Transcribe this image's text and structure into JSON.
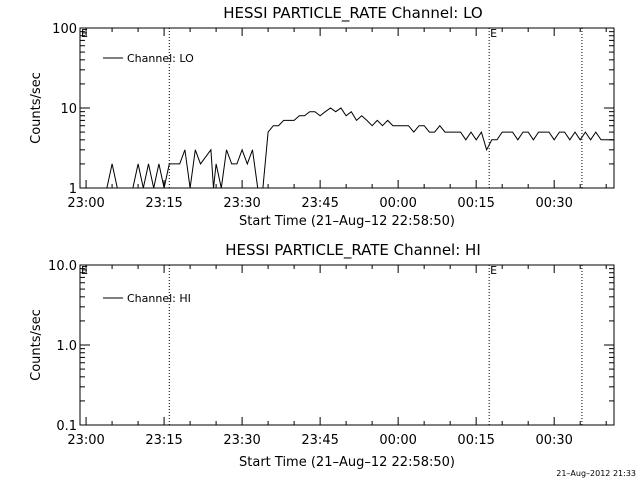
{
  "timestamp": "21–Aug–2012 21:33",
  "chart_data": [
    {
      "type": "line",
      "title": "HESSI PARTICLE_RATE Channel: LO",
      "xlabel": "Start Time (21–Aug–12 22:58:50)",
      "ylabel": "Counts/sec",
      "y_scale": "log",
      "ylim": [
        1,
        100
      ],
      "xlim": [
        "22:58:50",
        "00:41:30"
      ],
      "x_ticks": [
        "23:00",
        "23:15",
        "23:30",
        "23:45",
        "00:00",
        "00:15",
        "00:30"
      ],
      "y_ticks": [
        "1",
        "10",
        "100"
      ],
      "grid": false,
      "legend_position": "top-left",
      "series": [
        {
          "name": "Channel: LO",
          "color": "#000000",
          "points": [
            [
              "22:58:50",
              1
            ],
            [
              "23:04:00",
              1
            ],
            [
              "23:05:00",
              2
            ],
            [
              "23:06:00",
              1
            ],
            [
              "23:09:00",
              1
            ],
            [
              "23:10:00",
              2
            ],
            [
              "23:11:00",
              1
            ],
            [
              "23:12:00",
              2
            ],
            [
              "23:13:00",
              1
            ],
            [
              "23:14:00",
              2
            ],
            [
              "23:15:00",
              1
            ],
            [
              "23:16:00",
              2
            ],
            [
              "23:18:00",
              2
            ],
            [
              "23:19:00",
              3
            ],
            [
              "23:20:00",
              1
            ],
            [
              "23:21:00",
              3
            ],
            [
              "23:22:00",
              2
            ],
            [
              "23:24:00",
              3
            ],
            [
              "23:24:30",
              1
            ],
            [
              "23:25:00",
              2
            ],
            [
              "23:26:00",
              1
            ],
            [
              "23:27:00",
              3
            ],
            [
              "23:28:00",
              2
            ],
            [
              "23:28:30",
              2
            ],
            [
              "23:29:00",
              2
            ],
            [
              "23:30:00",
              3
            ],
            [
              "23:31:00",
              2
            ],
            [
              "23:32:00",
              3
            ],
            [
              "23:33:00",
              1
            ],
            [
              "23:34:00",
              1
            ],
            [
              "23:35:00",
              5
            ],
            [
              "23:36:00",
              6
            ],
            [
              "23:37:00",
              6
            ],
            [
              "23:38:00",
              7
            ],
            [
              "23:40:00",
              7
            ],
            [
              "23:41:00",
              8
            ],
            [
              "23:42:00",
              8
            ],
            [
              "23:43:00",
              9
            ],
            [
              "23:44:00",
              9
            ],
            [
              "23:45:00",
              8
            ],
            [
              "23:46:00",
              9
            ],
            [
              "23:47:00",
              10
            ],
            [
              "23:48:00",
              9
            ],
            [
              "23:49:00",
              10
            ],
            [
              "23:50:00",
              8
            ],
            [
              "23:51:00",
              9
            ],
            [
              "23:52:00",
              7
            ],
            [
              "23:53:00",
              8
            ],
            [
              "23:54:00",
              7
            ],
            [
              "23:55:00",
              6
            ],
            [
              "23:56:00",
              7
            ],
            [
              "23:57:00",
              6
            ],
            [
              "23:58:00",
              7
            ],
            [
              "23:59:00",
              6
            ],
            [
              "00:00:00",
              6
            ],
            [
              "00:02:00",
              6
            ],
            [
              "00:03:00",
              5
            ],
            [
              "00:04:00",
              6
            ],
            [
              "00:05:00",
              6
            ],
            [
              "00:06:00",
              5
            ],
            [
              "00:07:00",
              5
            ],
            [
              "00:08:00",
              6
            ],
            [
              "00:09:00",
              5
            ],
            [
              "00:10:00",
              5
            ],
            [
              "00:11:00",
              5
            ],
            [
              "00:12:00",
              5
            ],
            [
              "00:13:00",
              4
            ],
            [
              "00:14:00",
              5
            ],
            [
              "00:15:00",
              4
            ],
            [
              "00:16:00",
              5
            ],
            [
              "00:17:00",
              3
            ],
            [
              "00:18:00",
              4
            ],
            [
              "00:19:00",
              4
            ],
            [
              "00:20:00",
              5
            ],
            [
              "00:22:00",
              5
            ],
            [
              "00:23:00",
              4
            ],
            [
              "00:24:00",
              5
            ],
            [
              "00:25:00",
              5
            ],
            [
              "00:26:00",
              4
            ],
            [
              "00:27:00",
              5
            ],
            [
              "00:29:00",
              5
            ],
            [
              "00:30:00",
              4
            ],
            [
              "00:31:00",
              5
            ],
            [
              "00:32:00",
              5
            ],
            [
              "00:33:00",
              4
            ],
            [
              "00:34:00",
              5
            ],
            [
              "00:35:00",
              4
            ],
            [
              "00:36:00",
              5
            ],
            [
              "00:37:00",
              4
            ],
            [
              "00:38:00",
              5
            ],
            [
              "00:39:00",
              4
            ],
            [
              "00:40:00",
              4
            ],
            [
              "00:41:00",
              4
            ],
            [
              "00:41:30",
              4
            ]
          ]
        }
      ],
      "vlines": [
        {
          "x": "23:16:00",
          "style": "dotted",
          "label": ""
        },
        {
          "x": "00:17:30",
          "style": "dotted",
          "label": "E"
        },
        {
          "x": "00:35:20",
          "style": "dotted",
          "label": ""
        }
      ],
      "corner_label": "E"
    },
    {
      "type": "line",
      "title": "HESSI PARTICLE_RATE Channel: HI",
      "xlabel": "Start Time (21–Aug–12 22:58:50)",
      "ylabel": "Counts/sec",
      "y_scale": "log",
      "ylim": [
        0.1,
        10
      ],
      "xlim": [
        "22:58:50",
        "00:41:30"
      ],
      "x_ticks": [
        "23:00",
        "23:15",
        "23:30",
        "23:45",
        "00:00",
        "00:15",
        "00:30"
      ],
      "y_ticks": [
        "0.1",
        "1.0",
        "10.0"
      ],
      "grid": false,
      "legend_position": "top-left",
      "series": [
        {
          "name": "Channel: HI",
          "color": "#000000",
          "points": []
        }
      ],
      "vlines": [
        {
          "x": "23:16:00",
          "style": "dotted",
          "label": ""
        },
        {
          "x": "00:17:30",
          "style": "dotted",
          "label": "E"
        },
        {
          "x": "00:35:20",
          "style": "dotted",
          "label": ""
        }
      ],
      "corner_label": "E"
    }
  ]
}
